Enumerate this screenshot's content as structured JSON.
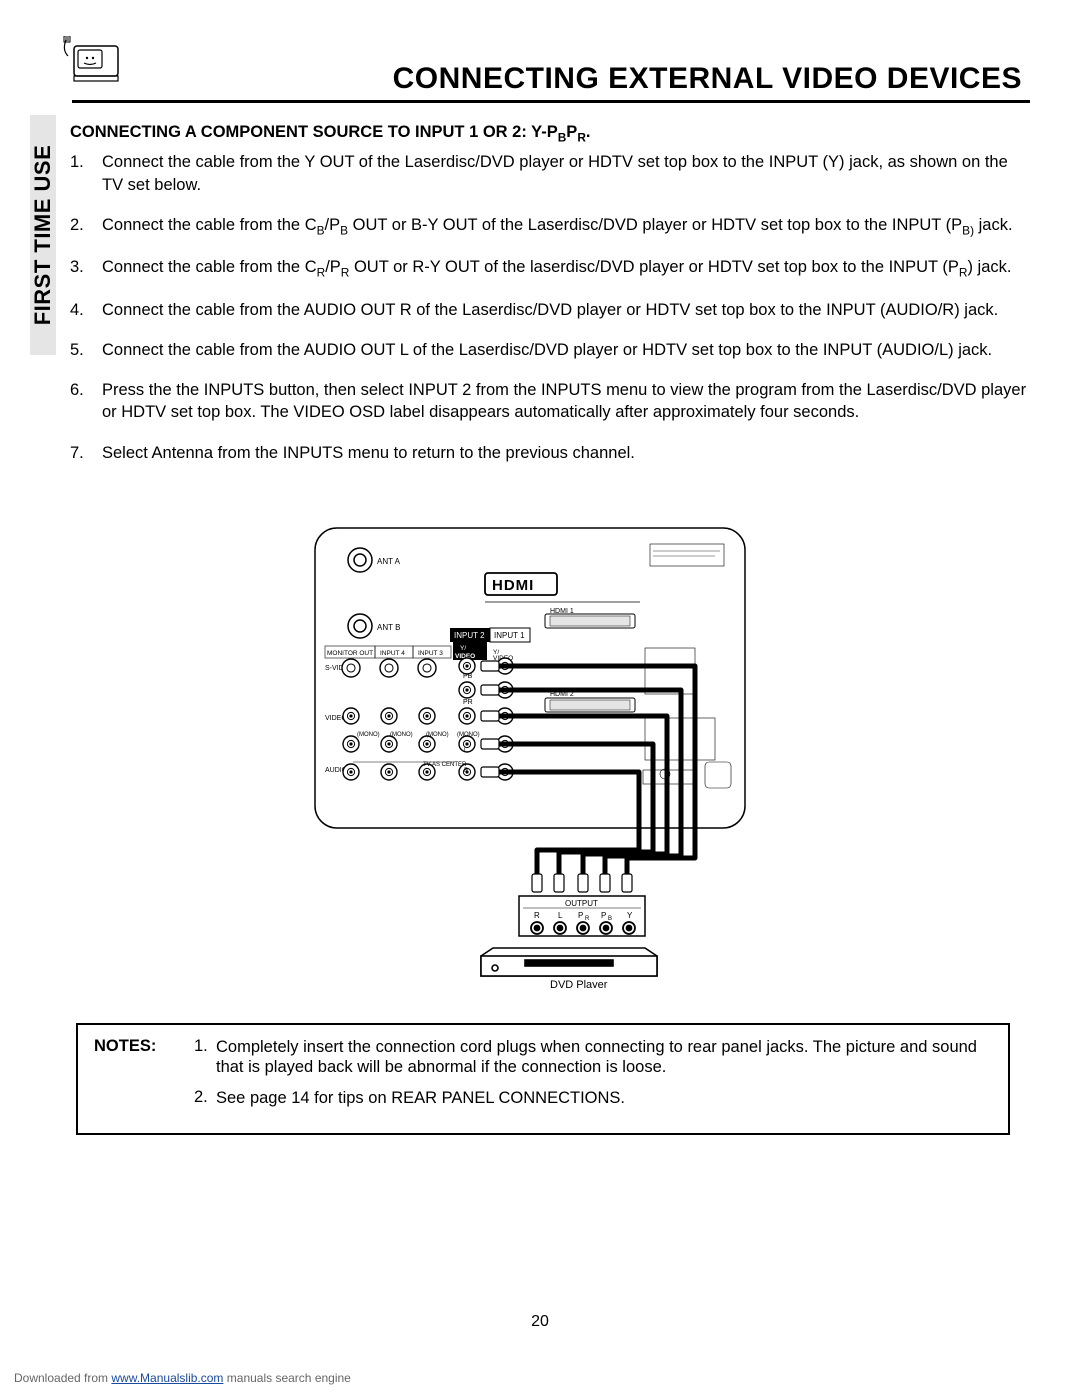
{
  "title": "CONNECTING EXTERNAL VIDEO DEVICES",
  "sidebar_label": "FIRST TIME USE",
  "subheading_prefix": "CONNECTING A COMPONENT SOURCE TO INPUT 1 OR 2:  Y-P",
  "subheading_sub1": "B",
  "subheading_mid": "P",
  "subheading_sub2": "R",
  "subheading_suffix": ".",
  "steps": [
    {
      "n": "1.",
      "html": "Connect the cable from the Y OUT of the Laserdisc/DVD player or HDTV set top box to the INPUT (Y) jack, as shown on the TV set below."
    },
    {
      "n": "2.",
      "html": "Connect the cable from the C<sub>B</sub>/P<sub>B</sub> OUT or B-Y OUT of the Laserdisc/DVD  player or HDTV set top box to the INPUT (P<sub>B)</sub> jack."
    },
    {
      "n": "3.",
      "html": "Connect the cable from the C<sub>R</sub>/P<sub>R</sub> OUT or R-Y OUT of the laserdisc/DVD player or HDTV set top box to the INPUT (P<sub>R</sub>) jack."
    },
    {
      "n": "4.",
      "html": "Connect the cable from the AUDIO OUT R of the Laserdisc/DVD player or  HDTV set top box to the INPUT (AUDIO/R) jack."
    },
    {
      "n": "5.",
      "html": "Connect the cable from the AUDIO OUT L of the Laserdisc/DVD player or HDTV set top box to the INPUT (AUDIO/L) jack."
    },
    {
      "n": "6.",
      "html": "Press the the INPUTS button, then select INPUT 2 from the INPUTS menu to view the program from the Laserdisc/DVD player or HDTV set top box.  The VIDEO OSD label disappears automatically after approximately four seconds."
    },
    {
      "n": "7.",
      "html": "Select Antenna from the INPUTS menu to return to the previous channel."
    }
  ],
  "notes_label": "NOTES:",
  "notes": [
    {
      "n": "1.",
      "text": "Completely insert the connection cord plugs when connecting to rear panel jacks.  The picture and sound that is played back will be abnormal if the connection is loose."
    },
    {
      "n": "2.",
      "text": "See page 14 for tips on REAR PANEL CONNECTIONS."
    }
  ],
  "page_number": "20",
  "footer_prefix": "Downloaded from ",
  "footer_link": "www.Manualslib.com",
  "footer_suffix": " manuals search engine",
  "diagram": {
    "labels": {
      "ant_a": "ANT A",
      "ant_b": "ANT B",
      "hdmi_logo": "HDMI",
      "hdmi1": "HDMI 1",
      "hdmi2": "HDMI 2",
      "input1": "INPUT 1",
      "input2": "INPUT 2",
      "input3": "INPUT 3",
      "input4": "INPUT 4",
      "monitor_out": "MONITOR OUT",
      "svideo": "S-VIDEO",
      "video_row": "VIDEO",
      "audio_row": "AUDIO",
      "mono": "(MONO)",
      "y_video": "Y/\nVIDEO",
      "pb": "PB",
      "pr": "PR",
      "r": "R",
      "l": "L",
      "output": "OUTPUT",
      "dvd_player": "DVD Player",
      "out_r": "R",
      "out_l": "L",
      "out_pr": "PR",
      "out_pb": "PB",
      "out_y": "Y"
    }
  }
}
